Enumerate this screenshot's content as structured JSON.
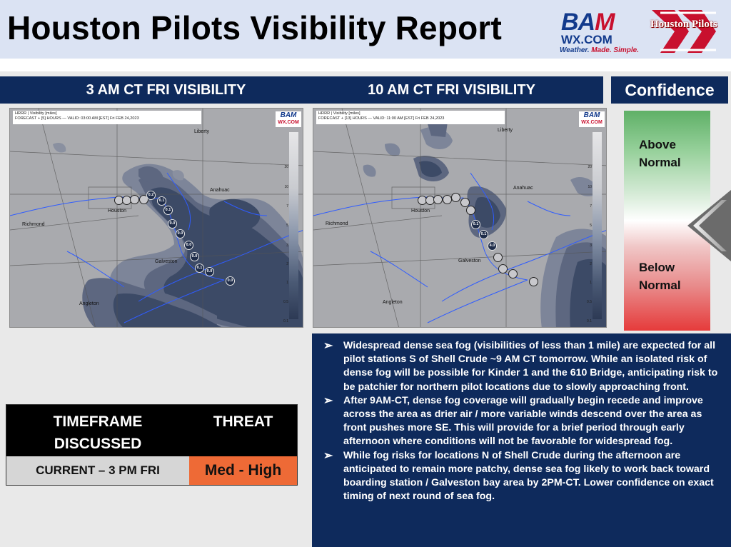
{
  "header": {
    "title": "Houston Pilots Visibility Report",
    "bam_logo": {
      "word_a": "BA",
      "word_b": "M",
      "site": "WX.COM",
      "tagline_a": "Weather. ",
      "tagline_b": "Made. Simple."
    },
    "partner_logo": "Houston Pilots"
  },
  "panels": {
    "left_header": "3 AM CT FRI VISIBILITY",
    "mid_header": "10 AM CT FRI VISIBILITY",
    "confidence_header": "Confidence"
  },
  "map_left": {
    "info_line1": "HRRR | Visibility [miles]",
    "info_line2": "FORECAST + [5] HOURS — VALID: 03:00 AM [EST] Fri FEB 24,2023",
    "logo_top": "BAM",
    "logo_sub": "WX.COM",
    "cities": {
      "liberty": "Liberty",
      "anahuac": "Anahuac",
      "houston": "Houston",
      "richmond": "Richmond",
      "galveston": "Galveston",
      "angleton": "Angleton"
    },
    "stations": [
      "0.2",
      "0.1",
      "0.1",
      "0.0",
      "0.0",
      "0.0",
      "0.0",
      "0.1",
      "0.0",
      "0.0"
    ]
  },
  "map_right": {
    "info_line1": "HRRR | Visibility [miles]",
    "info_line2": "FORECAST + [13] HOURS — VALID: 11:00 AM [EST] Fri FEB 24,2023",
    "logo_top": "BAM",
    "logo_sub": "WX.COM",
    "cities": {
      "liberty": "Liberty",
      "anahuac": "Anahuac",
      "houston": "Houston",
      "richmond": "Richmond",
      "galveston": "Galveston",
      "angleton": "Angleton"
    },
    "stations": [
      "0.1",
      "0.1",
      "4.0"
    ]
  },
  "scale_labels": [
    "20",
    "10",
    "7",
    "5",
    "3",
    "2",
    "1",
    "0.5",
    "0.1"
  ],
  "confidence": {
    "above": [
      "Above",
      "Normal"
    ],
    "below": [
      "Below",
      "Normal"
    ]
  },
  "timeframe_table": {
    "col1_header": [
      "TIMEFRAME",
      "DISCUSSED"
    ],
    "col2_header": "THREAT",
    "timeframe": "CURRENT – 3 PM FRI",
    "threat": "Med - High",
    "threat_color": "#ee6a36"
  },
  "bullets": [
    "Widespread dense sea fog (visibilities of less than 1 mile) are expected for all pilot stations S of Shell Crude ~9 AM CT tomorrow. While an isolated risk of dense fog will be possible for Kinder 1 and the 610 Bridge, anticipating risk to be patchier for northern pilot locations due to slowly approaching front.",
    "After 9AM-CT, dense fog coverage will gradually begin recede and improve across the area as drier air / more variable winds descend over the area as front pushes more SE. This will provide for a brief period through early afternoon where conditions will not be favorable for widespread fog.",
    "While fog risks for locations N of Shell Crude during the afternoon are anticipated to remain more patchy, dense sea fog likely to work back toward boarding station / Galveston bay area by 2PM-CT. Lower confidence on exact timing of next round of sea fog."
  ],
  "colors": {
    "navy": "#0e2a5c",
    "title_bg": "#dbe3f3",
    "threat": "#ee6a36"
  }
}
